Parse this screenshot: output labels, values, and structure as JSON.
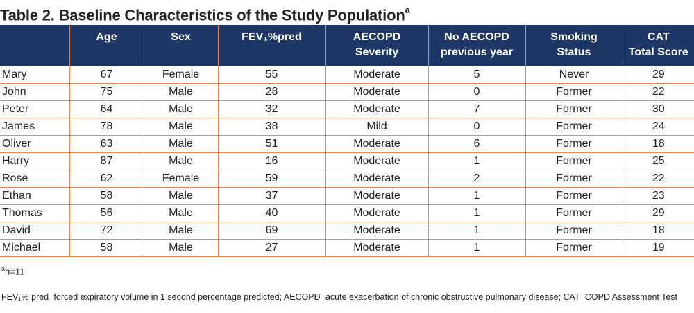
{
  "title": {
    "text": "Table 2. Baseline Characteristics of the Study Population",
    "sup": "a"
  },
  "columns": [
    "",
    "Age",
    "Sex",
    "FEV₁%pred",
    "AECOPD\nSeverity",
    "No AECOPD\nprevious year",
    "Smoking\nStatus",
    "CAT\nTotal Score"
  ],
  "rows": [
    [
      "Mary",
      "67",
      "Female",
      "55",
      "Moderate",
      "5",
      "Never",
      "29"
    ],
    [
      "John",
      "75",
      "Male",
      "28",
      "Moderate",
      "0",
      "Former",
      "22"
    ],
    [
      "Peter",
      "64",
      "Male",
      "32",
      "Moderate",
      "7",
      "Former",
      "30"
    ],
    [
      "James",
      "78",
      "Male",
      "38",
      "Mild",
      "0",
      "Former",
      "24"
    ],
    [
      "Oliver",
      "63",
      "Male",
      "51",
      "Moderate",
      "6",
      "Former",
      "18"
    ],
    [
      "Harry",
      "87",
      "Male",
      "16",
      "Moderate",
      "1",
      "Former",
      "25"
    ],
    [
      "Rose",
      "62",
      "Female",
      "59",
      "Moderate",
      "2",
      "Former",
      "22"
    ],
    [
      "Ethan",
      "58",
      "Male",
      "37",
      "Moderate",
      "1",
      "Former",
      "23"
    ],
    [
      "Thomas",
      "56",
      "Male",
      "40",
      "Moderate",
      "1",
      "Former",
      "29"
    ],
    [
      "David",
      "72",
      "Male",
      "69",
      "Moderate",
      "1",
      "Former",
      "18"
    ],
    [
      "Michael",
      "58",
      "Male",
      "27",
      "Moderate",
      "1",
      "Former",
      "19"
    ]
  ],
  "footnotes": {
    "a_sup": "a",
    "a_text": "n=11",
    "abbrev": "FEV₁% pred=forced expiratory volume in 1 second percentage predicted; AECOPD=acute exacerbation of chronic obstructive pulmonary disease; CAT=COPD Assessment Test"
  },
  "colors": {
    "header_bg": "#1e3766",
    "grid": "#e8894f",
    "header_text": "#ffffff"
  }
}
